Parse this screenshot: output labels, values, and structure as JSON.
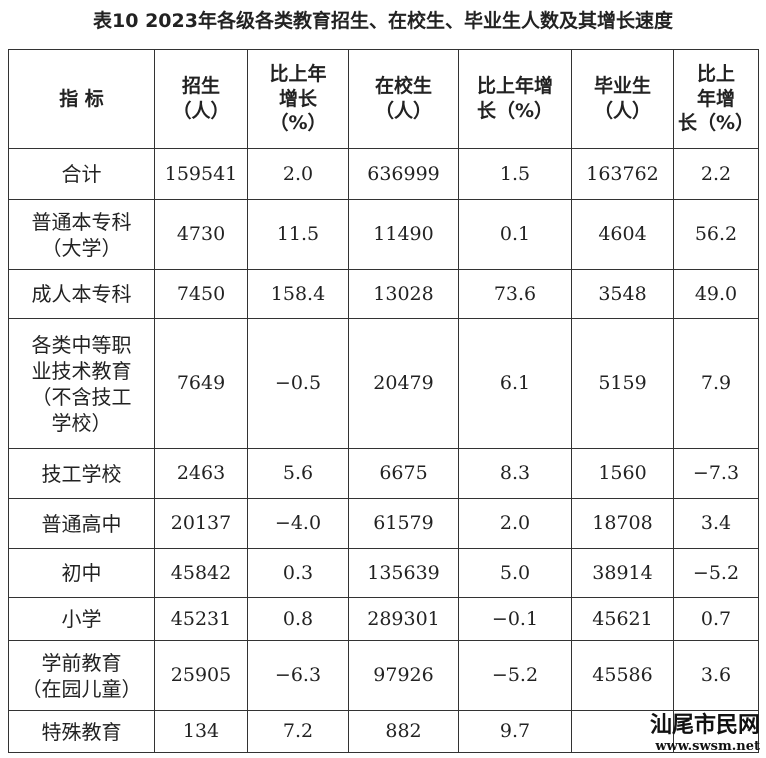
{
  "title": "表10  2023年各级各类教育招生、在校生、毕业生人数及其增长速度",
  "table": {
    "header": [
      "指  标",
      "招生\n（人）",
      "比上年\n增长\n（%）",
      "在校生\n（人）",
      "比上年增\n长（%）",
      "毕业生\n（人）",
      "比上\n年增\n长（%）"
    ],
    "rows": [
      [
        "合计",
        "159541",
        "2.0",
        "636999",
        "1.5",
        "163762",
        "2.2"
      ],
      [
        "普通本专科\n（大学）",
        "4730",
        "11.5",
        "11490",
        "0.1",
        "4604",
        "56.2"
      ],
      [
        "成人本专科",
        "7450",
        "158.4",
        "13028",
        "73.6",
        "3548",
        "49.0"
      ],
      [
        "各类中等职\n业技术教育\n（不含技工\n学校）",
        "7649",
        "−0.5",
        "20479",
        "6.1",
        "5159",
        "7.9"
      ],
      [
        "技工学校",
        "2463",
        "5.6",
        "6675",
        "8.3",
        "1560",
        "−7.3"
      ],
      [
        "普通高中",
        "20137",
        "−4.0",
        "61579",
        "2.0",
        "18708",
        "3.4"
      ],
      [
        "初中",
        "45842",
        "0.3",
        "135639",
        "5.0",
        "38914",
        "−5.2"
      ],
      [
        "小学",
        "45231",
        "0.8",
        "289301",
        "−0.1",
        "45621",
        "0.7"
      ],
      [
        "学前教育\n（在园儿童）",
        "25905",
        "−6.3",
        "97926",
        "−5.2",
        "45586",
        "3.6"
      ],
      [
        "特殊教育",
        "134",
        "7.2",
        "882",
        "9.7"
      ]
    ]
  },
  "watermark": {
    "name": "汕尾市民网",
    "url": "www.swsm.net"
  }
}
